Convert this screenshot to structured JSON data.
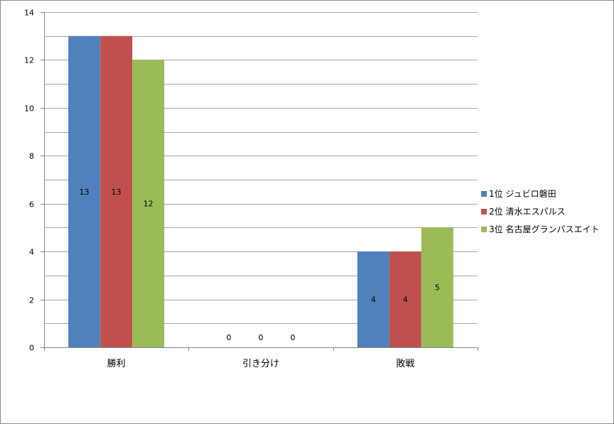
{
  "chart_data": {
    "type": "bar",
    "title": "",
    "xlabel": "",
    "ylabel": "",
    "categories": [
      "勝利",
      "引き分け",
      "敗戦"
    ],
    "series": [
      {
        "name": "1位  ジュビロ磐田",
        "color": "#4f81bd",
        "values": [
          13,
          0,
          4
        ]
      },
      {
        "name": "2位  清水エスパルス",
        "color": "#c0504d",
        "values": [
          13,
          0,
          4
        ]
      },
      {
        "name": "3位  名古屋グランパスエイト",
        "color": "#9bbb59",
        "values": [
          12,
          0,
          5
        ]
      }
    ],
    "ylim": [
      0,
      14
    ],
    "yticks": [
      0,
      2,
      4,
      6,
      8,
      10,
      12,
      14
    ],
    "grid": true,
    "data_labels": true,
    "legend_position": "right"
  }
}
